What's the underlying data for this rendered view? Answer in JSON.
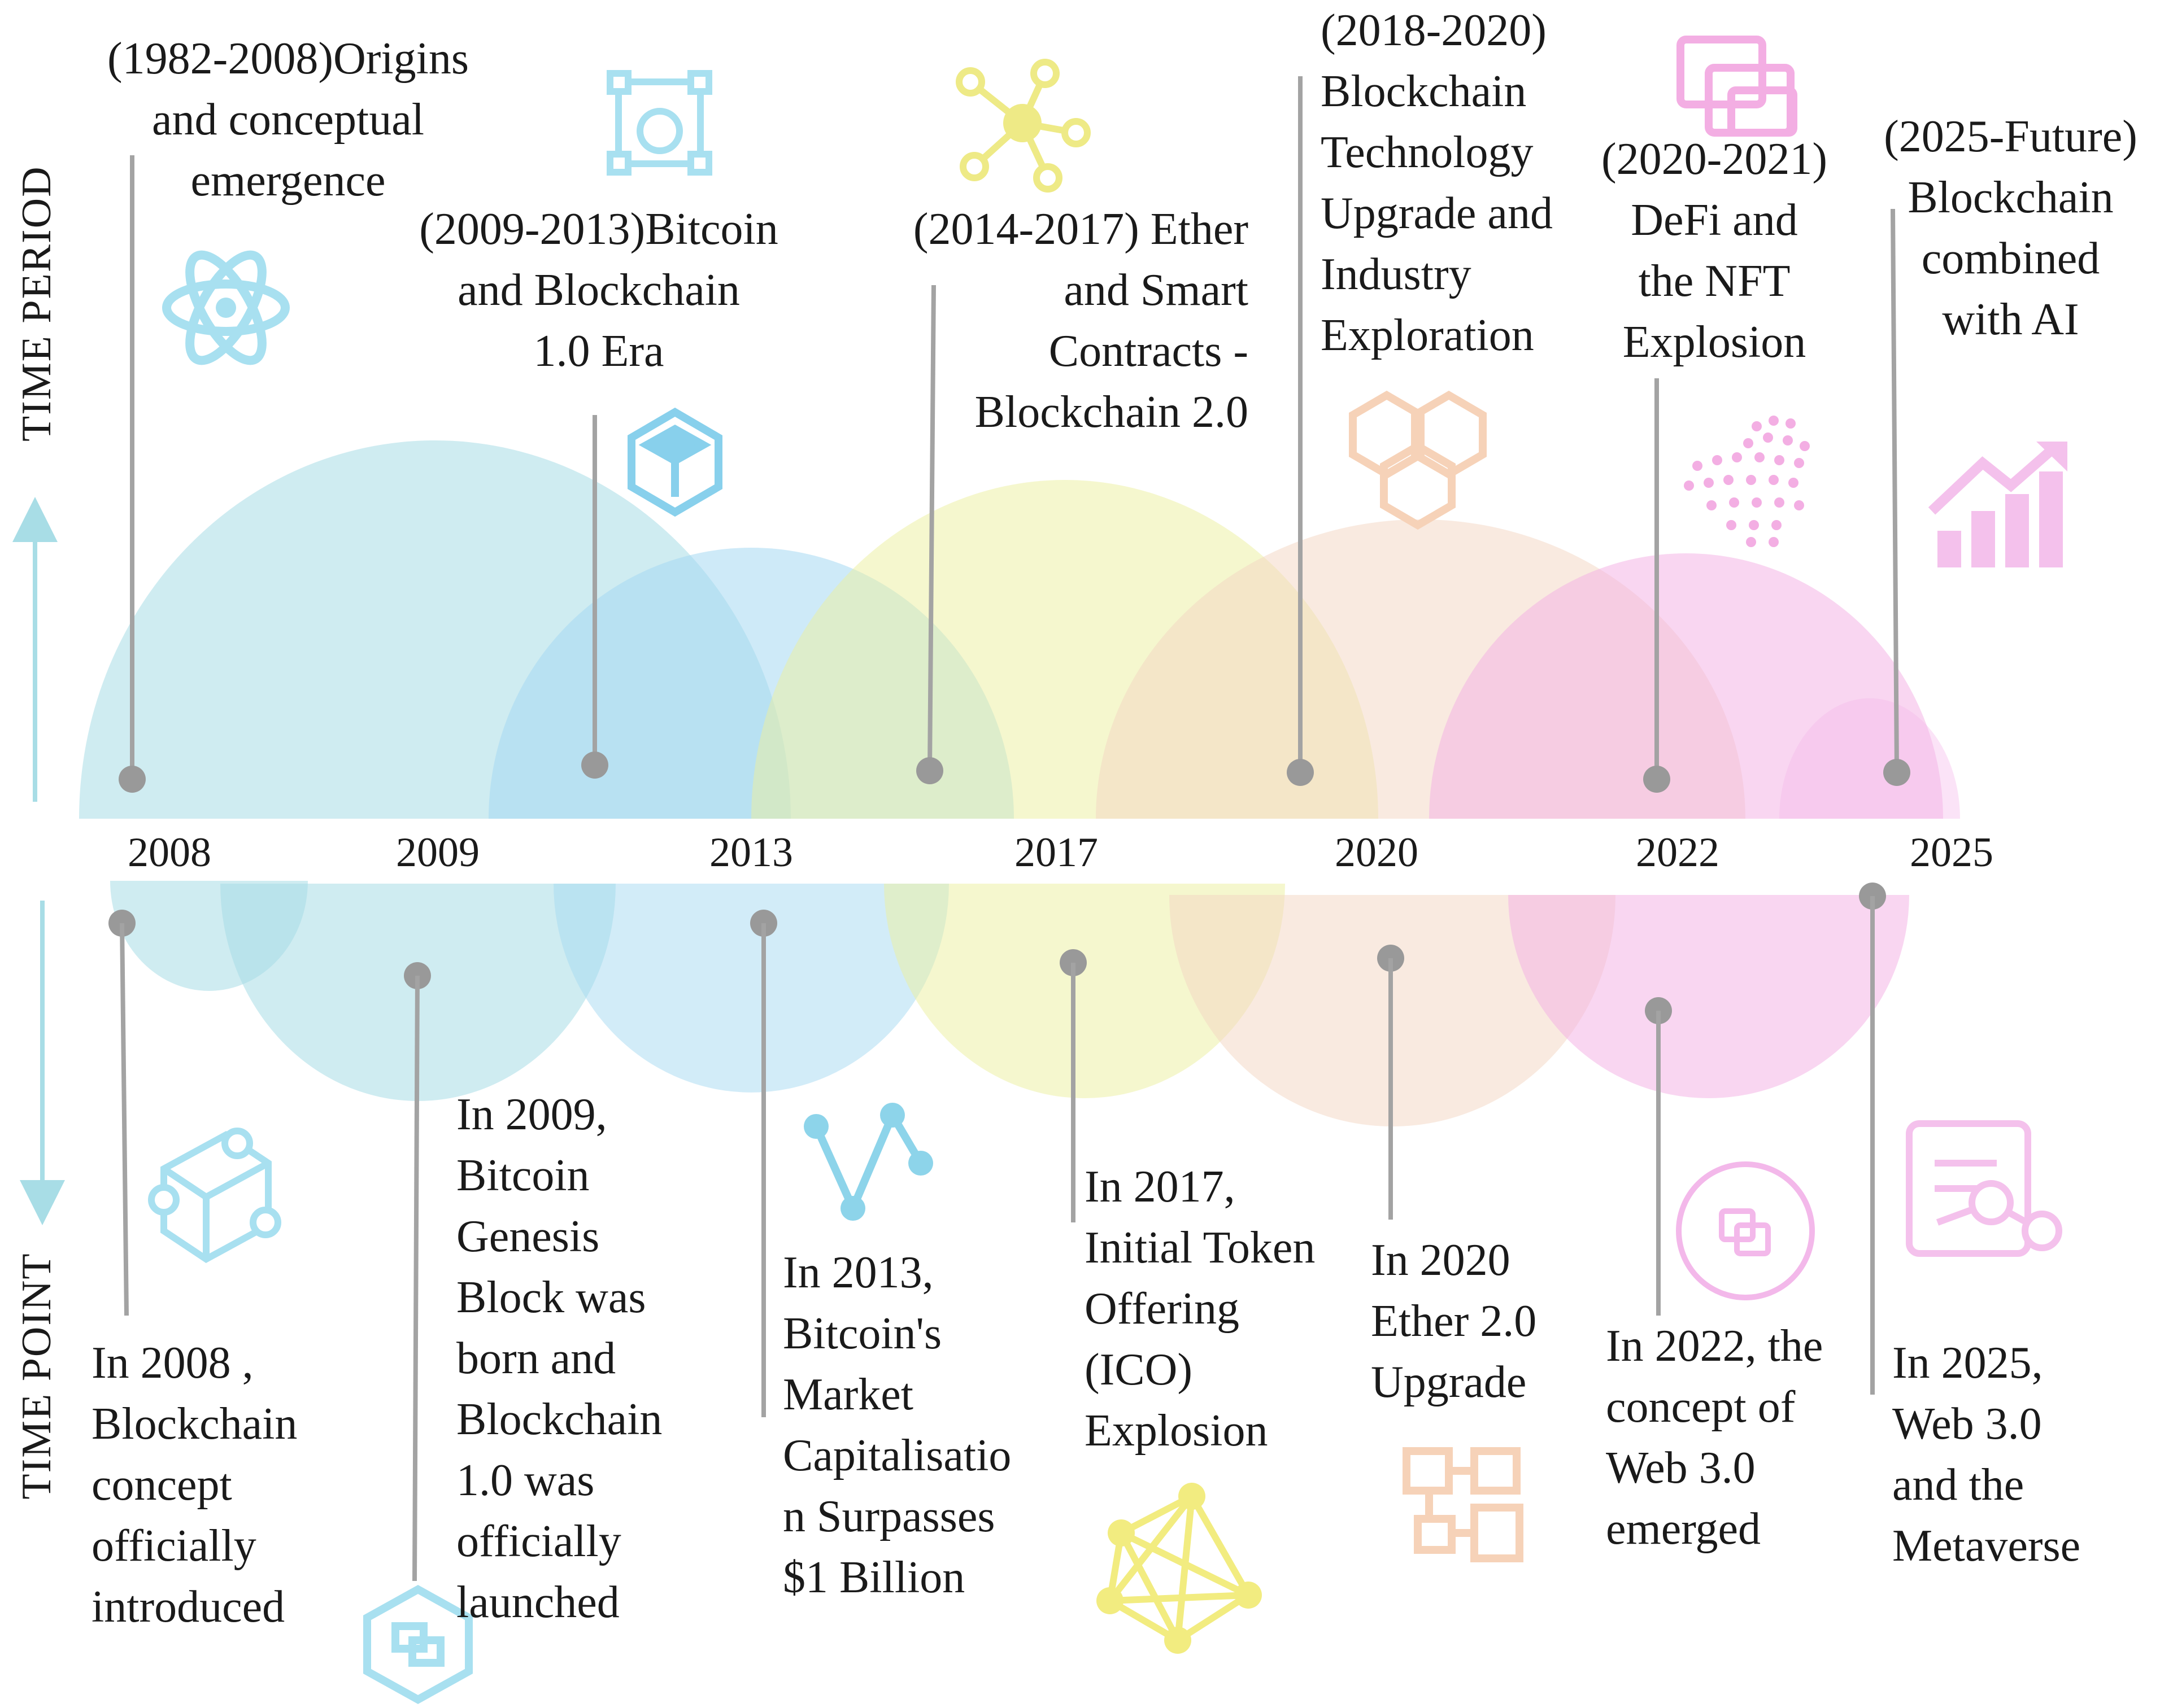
{
  "axes": {
    "top": "TIME PERIOD",
    "bottom": "TIME POINT"
  },
  "years": [
    "2008",
    "2009",
    "2013",
    "2017",
    "2020",
    "2022",
    "2025"
  ],
  "periods": [
    {
      "label": "(1982-2008)Origins\nand conceptual\nemergence",
      "color": "#a8dde6",
      "icon": "atom-icon"
    },
    {
      "label": "(2009-2013)Bitcoin\nand Blockchain\n1.0 Era",
      "color": "#a6d9f2",
      "icon": "cube-network-icon"
    },
    {
      "label": "(2014-2017) Ether\nand Smart\nContracts -\nBlockchain 2.0",
      "color": "#ecef9e",
      "icon": "network-node-icon"
    },
    {
      "label": "(2018-2020)\nBlockchain\nTechnology\nUpgrade and\nIndustry\nExploration",
      "color": "#f4d6c2",
      "icon": "hexagon-chain-icon"
    },
    {
      "label": "(2020-2021)\nDeFi and\nthe NFT\nExplosion",
      "color": "#f3aee3",
      "icon": "dots-spiral-icon"
    },
    {
      "label": "(2025-Future)\nBlockchain\ncombined\nwith AI",
      "color": "#f4b8ea",
      "icon": "growth-chart-icon"
    }
  ],
  "points": [
    {
      "label": "In 2008 ,\nBlockchain\nconcept\nofficially\nintroduced",
      "color": "#a8dde6",
      "icon": "cube-icon"
    },
    {
      "label": "In 2009,\nBitcoin\nGenesis\nBlock was\nborn and\nBlockchain\n1.0 was\nofficially\nlaunched",
      "color": "#a8dde6",
      "icon": "hexagon-link-icon"
    },
    {
      "label": "In 2013,\nBitcoin's\nMarket\nCapitalisatio\nn Surpasses\n$1 Billion",
      "color": "#a6d9f2",
      "icon": "line-graph-icon"
    },
    {
      "label": "In 2017,\nInitial Token\nOffering\n(ICO)\nExplosion",
      "color": "#ecef9e",
      "icon": "mesh-network-icon"
    },
    {
      "label": "In 2020\nEther 2.0\nUpgrade",
      "color": "#f4d6c2",
      "icon": "block-diagram-icon"
    },
    {
      "label": "In 2022, the\nconcept of\nWeb 3.0\nemerged",
      "color": "#f3aee3",
      "icon": "web-circle-icon"
    },
    {
      "label": "In 2025,\nWeb 3.0\nand the\nMetaverse",
      "color": "#f4b8ea",
      "icon": "document-graph-icon"
    }
  ]
}
